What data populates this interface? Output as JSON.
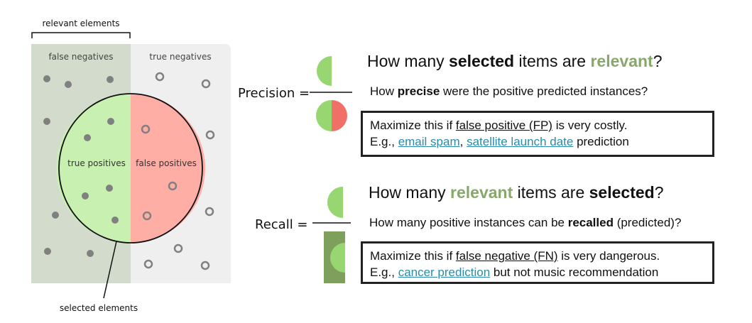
{
  "diagram": {
    "relevant_label": "relevant elements",
    "false_negatives": "false negatives",
    "true_negatives": "true negatives",
    "true_positives": "true positives",
    "false_positives": "false positives",
    "selected_label": "selected elements",
    "colors": {
      "relevant_bg": "#d3dccc",
      "irrelevant_bg": "#efefef",
      "true_positive": "#c8f0b0",
      "false_positive": "#ffaea6",
      "dot": "#808080"
    }
  },
  "precision": {
    "label": "Precision =",
    "question_pre": "How many ",
    "question_b1": "selected",
    "question_mid": " items are ",
    "question_b2": "relevant",
    "question_end": "?",
    "sub_pre": "How ",
    "sub_b": "precise",
    "sub_end": " were the positive predicted instances?",
    "box_pre": "Maximize this if ",
    "box_u": "false positive (FP)",
    "box_end": " is very costly.",
    "box2_pre": "E.g., ",
    "link1": "email spam",
    "sep": ", ",
    "link2": "satellite launch date",
    "box2_end": " prediction"
  },
  "recall": {
    "label": "Recall =",
    "question_pre": "How many ",
    "question_b1": "relevant",
    "question_mid": " items are ",
    "question_b2": "selected",
    "question_end": "?",
    "sub_pre": "How many positive instances can be ",
    "sub_b": "recalled",
    "sub_end": " (predicted)?",
    "box_pre": "Maximize this if ",
    "box_u": "false negative (FN)",
    "box_end": " is very dangerous.",
    "box2_pre": "E.g., ",
    "link1": "cancer prediction",
    "box2_end": " but not music recommendation"
  }
}
